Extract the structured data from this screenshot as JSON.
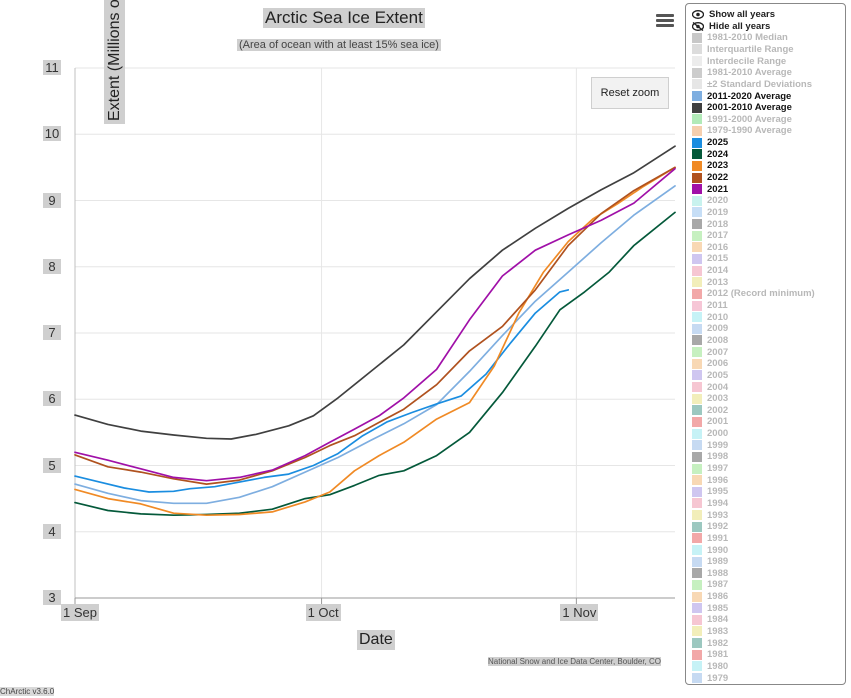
{
  "header": {
    "title": "Arctic Sea Ice Extent",
    "subtitle": "(Area of ocean with at least 15% sea ice)",
    "reset_zoom": "Reset zoom",
    "menu_icon": "hamburger-menu-icon"
  },
  "footer": {
    "credit": "National Snow and Ice Data Center, Boulder, CO",
    "version": "ChArctic v3.6.0"
  },
  "legend": {
    "show_all": "Show all years",
    "hide_all": "Hide all years",
    "items": [
      {
        "label": "1981-2010 Median",
        "color": "#c8c8c8",
        "visible": false
      },
      {
        "label": "Interquartile Range",
        "color": "#dcdcdc",
        "visible": false
      },
      {
        "label": "Interdecile Range",
        "color": "#ececec",
        "visible": false
      },
      {
        "label": "1981-2010 Average",
        "color": "#cccccc",
        "visible": false
      },
      {
        "label": "±2 Standard Deviations",
        "color": "#e6e6e6",
        "visible": false
      },
      {
        "label": "2011-2020 Average",
        "color": "#7eaee0",
        "visible": true
      },
      {
        "label": "2001-2010 Average",
        "color": "#404040",
        "visible": true
      },
      {
        "label": "1991-2000 Average",
        "color": "#b2eab8",
        "visible": false
      },
      {
        "label": "1979-1990 Average",
        "color": "#f6cfae",
        "visible": false
      },
      {
        "label": "2025",
        "color": "#1a8de0",
        "visible": true
      },
      {
        "label": "2024",
        "color": "#04593a",
        "visible": true
      },
      {
        "label": "2023",
        "color": "#f08a25",
        "visible": true
      },
      {
        "label": "2022",
        "color": "#b0521f",
        "visible": true
      },
      {
        "label": "2021",
        "color": "#a010a8",
        "visible": true
      },
      {
        "label": "2020",
        "color": "#c8f2ee",
        "visible": false
      },
      {
        "label": "2019",
        "color": "#c6def6",
        "visible": false
      },
      {
        "label": "2018",
        "color": "#a8a8a8",
        "visible": false
      },
      {
        "label": "2017",
        "color": "#c6f0c0",
        "visible": false
      },
      {
        "label": "2016",
        "color": "#f8d8b4",
        "visible": false
      },
      {
        "label": "2015",
        "color": "#cfc6f0",
        "visible": false
      },
      {
        "label": "2014",
        "color": "#f6c6d2",
        "visible": false
      },
      {
        "label": "2013",
        "color": "#f2eeba",
        "visible": false
      },
      {
        "label": "2012 (Record minimum)",
        "color": "#f2a8a8",
        "visible": false
      },
      {
        "label": "2011",
        "color": "#f6c6d6",
        "visible": false
      },
      {
        "label": "2010",
        "color": "#c6f2f6",
        "visible": false
      },
      {
        "label": "2009",
        "color": "#c6daf2",
        "visible": false
      },
      {
        "label": "2008",
        "color": "#a8a8a8",
        "visible": false
      },
      {
        "label": "2007",
        "color": "#c6f0c0",
        "visible": false
      },
      {
        "label": "2006",
        "color": "#f8d8b4",
        "visible": false
      },
      {
        "label": "2005",
        "color": "#cfc6f0",
        "visible": false
      },
      {
        "label": "2004",
        "color": "#f6c6d2",
        "visible": false
      },
      {
        "label": "2003",
        "color": "#f2eeba",
        "visible": false
      },
      {
        "label": "2002",
        "color": "#9cc8c0",
        "visible": false
      },
      {
        "label": "2001",
        "color": "#f2a8a8",
        "visible": false
      },
      {
        "label": "2000",
        "color": "#c6f2f6",
        "visible": false
      },
      {
        "label": "1999",
        "color": "#c6daf2",
        "visible": false
      },
      {
        "label": "1998",
        "color": "#a8a8a8",
        "visible": false
      },
      {
        "label": "1997",
        "color": "#c6f0c0",
        "visible": false
      },
      {
        "label": "1996",
        "color": "#f8d8b4",
        "visible": false
      },
      {
        "label": "1995",
        "color": "#cfc6f0",
        "visible": false
      },
      {
        "label": "1994",
        "color": "#f6c6d2",
        "visible": false
      },
      {
        "label": "1993",
        "color": "#f2eeba",
        "visible": false
      },
      {
        "label": "1992",
        "color": "#9cc8c0",
        "visible": false
      },
      {
        "label": "1991",
        "color": "#f2a8a8",
        "visible": false
      },
      {
        "label": "1990",
        "color": "#c6f2f6",
        "visible": false
      },
      {
        "label": "1989",
        "color": "#c6daf2",
        "visible": false
      },
      {
        "label": "1988",
        "color": "#a8a8a8",
        "visible": false
      },
      {
        "label": "1987",
        "color": "#c6f0c0",
        "visible": false
      },
      {
        "label": "1986",
        "color": "#f8d8b4",
        "visible": false
      },
      {
        "label": "1985",
        "color": "#cfc6f0",
        "visible": false
      },
      {
        "label": "1984",
        "color": "#f6c6d2",
        "visible": false
      },
      {
        "label": "1983",
        "color": "#f2eeba",
        "visible": false
      },
      {
        "label": "1982",
        "color": "#9cc8c0",
        "visible": false
      },
      {
        "label": "1981",
        "color": "#f2a8a8",
        "visible": false
      },
      {
        "label": "1980",
        "color": "#c6f2f6",
        "visible": false
      },
      {
        "label": "1979",
        "color": "#c6daf2",
        "visible": false
      }
    ]
  },
  "chart_data": {
    "type": "line",
    "title": "Arctic Sea Ice Extent",
    "subtitle": "(Area of ocean with at least 15% sea ice)",
    "xlabel": "Date",
    "ylabel": "Extent (Millions of square kilometers)",
    "x_unit": "day of year (Sep 1 = 244)",
    "xlim": [
      244,
      317
    ],
    "ylim": [
      3,
      11
    ],
    "yticks": [
      3,
      4,
      5,
      6,
      7,
      8,
      9,
      10,
      11
    ],
    "xticks": [
      {
        "day": 244,
        "label": "1 Sep"
      },
      {
        "day": 274,
        "label": "1 Oct"
      },
      {
        "day": 305,
        "label": "1 Nov"
      }
    ],
    "grid": true,
    "legend_position": "right",
    "series": [
      {
        "name": "2001-2010 Average",
        "color": "#404040",
        "points": [
          [
            244,
            5.76
          ],
          [
            248,
            5.62
          ],
          [
            252,
            5.52
          ],
          [
            256,
            5.46
          ],
          [
            260,
            5.41
          ],
          [
            263,
            5.4
          ],
          [
            266,
            5.47
          ],
          [
            270,
            5.6
          ],
          [
            273,
            5.75
          ],
          [
            276,
            6.02
          ],
          [
            280,
            6.42
          ],
          [
            284,
            6.82
          ],
          [
            288,
            7.32
          ],
          [
            292,
            7.82
          ],
          [
            296,
            8.25
          ],
          [
            300,
            8.58
          ],
          [
            304,
            8.88
          ],
          [
            308,
            9.16
          ],
          [
            312,
            9.42
          ],
          [
            317,
            9.82
          ]
        ]
      },
      {
        "name": "2011-2020 Average",
        "color": "#7eaee0",
        "points": [
          [
            244,
            4.72
          ],
          [
            248,
            4.58
          ],
          [
            252,
            4.47
          ],
          [
            256,
            4.43
          ],
          [
            260,
            4.43
          ],
          [
            264,
            4.52
          ],
          [
            268,
            4.68
          ],
          [
            272,
            4.9
          ],
          [
            276,
            5.12
          ],
          [
            280,
            5.38
          ],
          [
            284,
            5.63
          ],
          [
            288,
            5.92
          ],
          [
            292,
            6.42
          ],
          [
            296,
            6.96
          ],
          [
            300,
            7.48
          ],
          [
            304,
            7.92
          ],
          [
            308,
            8.36
          ],
          [
            312,
            8.78
          ],
          [
            317,
            9.22
          ]
        ]
      },
      {
        "name": "2025",
        "color": "#1a8de0",
        "points": [
          [
            244,
            4.84
          ],
          [
            247,
            4.75
          ],
          [
            250,
            4.66
          ],
          [
            253,
            4.6
          ],
          [
            256,
            4.61
          ],
          [
            258,
            4.65
          ],
          [
            261,
            4.68
          ],
          [
            264,
            4.75
          ],
          [
            267,
            4.82
          ],
          [
            270,
            4.87
          ],
          [
            273,
            5.0
          ],
          [
            276,
            5.18
          ],
          [
            279,
            5.45
          ],
          [
            282,
            5.66
          ],
          [
            285,
            5.8
          ],
          [
            288,
            5.93
          ],
          [
            291,
            6.05
          ],
          [
            294,
            6.38
          ],
          [
            297,
            6.85
          ],
          [
            300,
            7.3
          ],
          [
            303,
            7.62
          ],
          [
            304,
            7.65
          ]
        ]
      },
      {
        "name": "2024",
        "color": "#04593a",
        "points": [
          [
            244,
            4.44
          ],
          [
            248,
            4.32
          ],
          [
            252,
            4.27
          ],
          [
            256,
            4.25
          ],
          [
            260,
            4.26
          ],
          [
            264,
            4.28
          ],
          [
            268,
            4.34
          ],
          [
            272,
            4.5
          ],
          [
            275,
            4.56
          ],
          [
            278,
            4.7
          ],
          [
            281,
            4.85
          ],
          [
            284,
            4.92
          ],
          [
            288,
            5.15
          ],
          [
            292,
            5.5
          ],
          [
            296,
            6.1
          ],
          [
            300,
            6.8
          ],
          [
            303,
            7.35
          ],
          [
            306,
            7.62
          ],
          [
            309,
            7.92
          ],
          [
            312,
            8.32
          ],
          [
            317,
            8.82
          ]
        ]
      },
      {
        "name": "2023",
        "color": "#f08a25",
        "points": [
          [
            244,
            4.64
          ],
          [
            248,
            4.5
          ],
          [
            252,
            4.42
          ],
          [
            256,
            4.28
          ],
          [
            260,
            4.25
          ],
          [
            264,
            4.26
          ],
          [
            268,
            4.3
          ],
          [
            272,
            4.45
          ],
          [
            275,
            4.6
          ],
          [
            278,
            4.92
          ],
          [
            281,
            5.15
          ],
          [
            284,
            5.35
          ],
          [
            288,
            5.7
          ],
          [
            292,
            5.95
          ],
          [
            295,
            6.5
          ],
          [
            298,
            7.3
          ],
          [
            301,
            7.92
          ],
          [
            304,
            8.38
          ],
          [
            307,
            8.72
          ],
          [
            310,
            8.95
          ],
          [
            313,
            9.2
          ],
          [
            317,
            9.5
          ]
        ]
      },
      {
        "name": "2022",
        "color": "#b0521f",
        "points": [
          [
            244,
            5.16
          ],
          [
            248,
            4.98
          ],
          [
            252,
            4.9
          ],
          [
            256,
            4.8
          ],
          [
            260,
            4.72
          ],
          [
            264,
            4.78
          ],
          [
            268,
            4.92
          ],
          [
            272,
            5.12
          ],
          [
            275,
            5.3
          ],
          [
            278,
            5.45
          ],
          [
            281,
            5.65
          ],
          [
            284,
            5.85
          ],
          [
            288,
            6.22
          ],
          [
            292,
            6.73
          ],
          [
            296,
            7.1
          ],
          [
            300,
            7.65
          ],
          [
            304,
            8.32
          ],
          [
            308,
            8.8
          ],
          [
            312,
            9.15
          ],
          [
            317,
            9.5
          ]
        ]
      },
      {
        "name": "2021",
        "color": "#a010a8",
        "points": [
          [
            244,
            5.2
          ],
          [
            248,
            5.08
          ],
          [
            252,
            4.95
          ],
          [
            256,
            4.82
          ],
          [
            260,
            4.77
          ],
          [
            264,
            4.82
          ],
          [
            268,
            4.93
          ],
          [
            272,
            5.15
          ],
          [
            275,
            5.35
          ],
          [
            278,
            5.55
          ],
          [
            281,
            5.75
          ],
          [
            284,
            6.02
          ],
          [
            288,
            6.45
          ],
          [
            292,
            7.2
          ],
          [
            296,
            7.86
          ],
          [
            300,
            8.25
          ],
          [
            304,
            8.48
          ],
          [
            308,
            8.7
          ],
          [
            312,
            8.96
          ],
          [
            317,
            9.48
          ]
        ]
      }
    ]
  }
}
